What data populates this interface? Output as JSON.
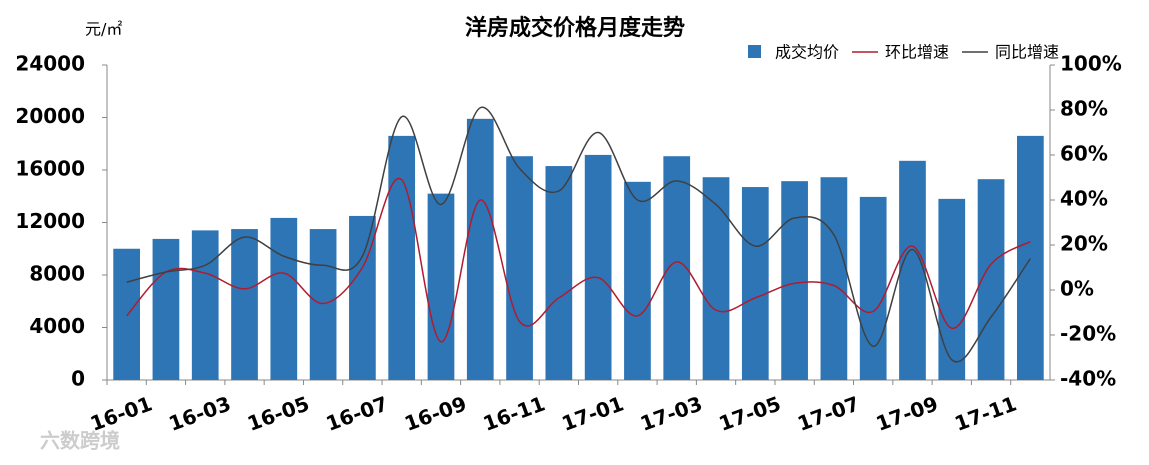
{
  "chart_data": {
    "type": "bar",
    "title": "洋房成交价格月度走势",
    "y_label": "元/㎡",
    "watermark": "六数跨境",
    "categories": [
      "16-01",
      null,
      "16-03",
      null,
      "16-05",
      null,
      "16-07",
      null,
      "16-09",
      null,
      "16-11",
      null,
      "17-01",
      null,
      "17-03",
      null,
      "17-05",
      null,
      "17-07",
      null,
      "17-09",
      null,
      "17-11",
      null
    ],
    "series": [
      {
        "name": "成交均价",
        "type": "bar",
        "axis": "y",
        "color": "#2e75b6",
        "values": [
          10000,
          10750,
          11400,
          11500,
          12350,
          11500,
          12500,
          18600,
          14200,
          19900,
          17050,
          16300,
          17150,
          15100,
          17050,
          15450,
          14700,
          15150,
          15450,
          13950,
          16700,
          13800,
          15300,
          18600
        ]
      },
      {
        "name": "环比增速",
        "type": "line",
        "axis": "y2",
        "color": "#b01c2e",
        "values": [
          -11.5,
          8,
          7.5,
          0.5,
          7.5,
          -6,
          10,
          49,
          -23,
          40,
          -14,
          -3.5,
          5.5,
          -11.5,
          12.5,
          -9,
          -3.5,
          3,
          2,
          -9.5,
          19.5,
          -17,
          11.5,
          21.5
        ]
      },
      {
        "name": "同比增速",
        "type": "line",
        "axis": "y2",
        "color": "#404040",
        "values": [
          3.5,
          8,
          11,
          23.5,
          15,
          11,
          15,
          77,
          38,
          81,
          54,
          44,
          70,
          40,
          48.5,
          38,
          19.5,
          32,
          24.5,
          -25,
          18,
          -31,
          -12,
          14
        ]
      }
    ],
    "ylim": [
      0,
      24000
    ],
    "yticks": [
      0,
      4000,
      8000,
      12000,
      16000,
      20000,
      24000
    ],
    "y2lim": [
      -40,
      100
    ],
    "y2ticks": [
      {
        "value": -40,
        "label": "-40%"
      },
      {
        "value": -20,
        "label": "-20%"
      },
      {
        "value": 0,
        "label": "0%"
      },
      {
        "value": 20,
        "label": "20%"
      },
      {
        "value": 40,
        "label": "40%"
      },
      {
        "value": 60,
        "label": "60%"
      },
      {
        "value": 80,
        "label": "80%"
      },
      {
        "value": 100,
        "label": "100%"
      }
    ]
  }
}
